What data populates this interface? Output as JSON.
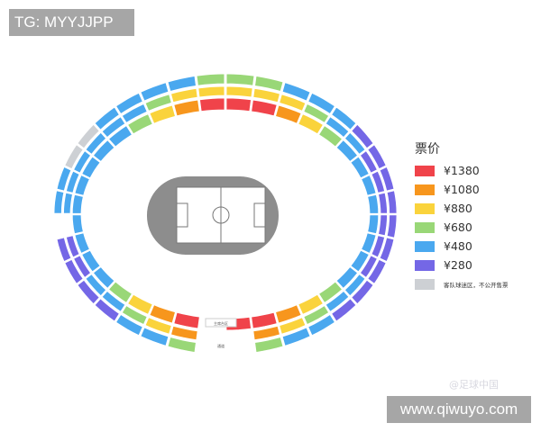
{
  "tag_label": "TG: MYYJJPP",
  "site_label": "www.qiwuyo.com",
  "watermark": "@足球中国",
  "legend": {
    "title": "票价",
    "items": [
      {
        "code": "R",
        "label": "¥1380",
        "color": "#f0434a"
      },
      {
        "code": "O",
        "label": "¥1080",
        "color": "#f7961d"
      },
      {
        "code": "Y",
        "label": "¥880",
        "color": "#fad33c"
      },
      {
        "code": "G",
        "label": "¥680",
        "color": "#99d777"
      },
      {
        "code": "B",
        "label": "¥480",
        "color": "#4aa8ef"
      },
      {
        "code": "P",
        "label": "¥280",
        "color": "#7467e6"
      },
      {
        "code": "X",
        "label": "客队球迷区，不公开售票",
        "color": "#cdd0d4"
      }
    ]
  },
  "stadium": {
    "rings": [
      "RROYGBBBBBBBBGYORR-ROYGBBBBBBBBBGYOR",
      "YYYGBBPPPPPPBBGYO--OYGBBPP-BBBBBBGYY",
      "GGBBBPPPPPPPPPBBG--GBBPPPP-BBXXBBBBG"
    ],
    "chairman_label": "主席台区",
    "entry_label": "通道"
  }
}
